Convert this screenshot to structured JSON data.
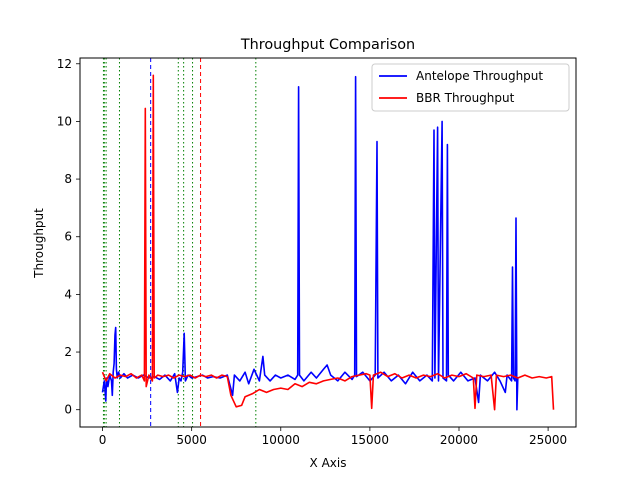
{
  "chart_data": {
    "type": "line",
    "title": "Throughput Comparison",
    "xlabel": "X Axis",
    "ylabel": "Throughput",
    "xlim": [
      -1265,
      26565
    ],
    "ylim": [
      -0.6,
      12.2
    ],
    "x_ticks": [
      0,
      5000,
      10000,
      15000,
      20000,
      25000
    ],
    "y_ticks": [
      0,
      2,
      4,
      6,
      8,
      10,
      12
    ],
    "grid": false,
    "legend_position": "upper right",
    "series": [
      {
        "name": "Antelope Throughput",
        "color": "#0000ff",
        "points": [
          [
            0,
            0.6
          ],
          [
            100,
            1.0
          ],
          [
            180,
            0.3
          ],
          [
            220,
            1.1
          ],
          [
            300,
            0.8
          ],
          [
            400,
            1.2
          ],
          [
            500,
            1.0
          ],
          [
            550,
            0.5
          ],
          [
            600,
            1.3
          ],
          [
            650,
            1.6
          ],
          [
            700,
            2.6
          ],
          [
            740,
            2.85
          ],
          [
            780,
            1.4
          ],
          [
            830,
            1.1
          ],
          [
            900,
            1.3
          ],
          [
            1000,
            1.1
          ],
          [
            1200,
            1.25
          ],
          [
            1400,
            1.1
          ],
          [
            1700,
            1.2
          ],
          [
            2000,
            1.1
          ],
          [
            2300,
            1.2
          ],
          [
            2600,
            1.1
          ],
          [
            2900,
            1.15
          ],
          [
            3200,
            1.05
          ],
          [
            3500,
            1.2
          ],
          [
            3800,
            1.0
          ],
          [
            4050,
            1.25
          ],
          [
            4200,
            0.6
          ],
          [
            4300,
            1.1
          ],
          [
            4400,
            1.0
          ],
          [
            4500,
            1.3
          ],
          [
            4580,
            2.65
          ],
          [
            4650,
            1.0
          ],
          [
            4800,
            1.2
          ],
          [
            5000,
            1.1
          ],
          [
            5300,
            1.15
          ],
          [
            5600,
            1.2
          ],
          [
            5900,
            1.1
          ],
          [
            6200,
            1.15
          ],
          [
            6600,
            1.1
          ],
          [
            7000,
            1.2
          ],
          [
            7300,
            0.5
          ],
          [
            7400,
            1.2
          ],
          [
            7700,
            1.0
          ],
          [
            8000,
            1.3
          ],
          [
            8200,
            0.9
          ],
          [
            8500,
            1.4
          ],
          [
            8800,
            1.0
          ],
          [
            9000,
            1.85
          ],
          [
            9100,
            1.2
          ],
          [
            9400,
            1.0
          ],
          [
            9700,
            1.2
          ],
          [
            10000,
            1.1
          ],
          [
            10400,
            1.2
          ],
          [
            10800,
            1.05
          ],
          [
            10950,
            1.2
          ],
          [
            11000,
            11.2
          ],
          [
            11050,
            1.2
          ],
          [
            11300,
            1.0
          ],
          [
            11700,
            1.3
          ],
          [
            12000,
            1.1
          ],
          [
            12400,
            1.4
          ],
          [
            12600,
            1.55
          ],
          [
            12800,
            1.2
          ],
          [
            13200,
            1.0
          ],
          [
            13600,
            1.3
          ],
          [
            14000,
            1.05
          ],
          [
            14150,
            1.2
          ],
          [
            14200,
            11.55
          ],
          [
            14250,
            1.15
          ],
          [
            14600,
            1.3
          ],
          [
            15000,
            1.0
          ],
          [
            15300,
            1.2
          ],
          [
            15400,
            9.3
          ],
          [
            15450,
            1.1
          ],
          [
            15800,
            1.3
          ],
          [
            16200,
            1.0
          ],
          [
            16600,
            1.2
          ],
          [
            17000,
            0.9
          ],
          [
            17400,
            1.3
          ],
          [
            17800,
            1.0
          ],
          [
            18200,
            1.2
          ],
          [
            18500,
            1.0
          ],
          [
            18600,
            9.7
          ],
          [
            18650,
            1.1
          ],
          [
            18800,
            9.8
          ],
          [
            18850,
            1.0
          ],
          [
            19050,
            10.0
          ],
          [
            19100,
            1.1
          ],
          [
            19300,
            1.0
          ],
          [
            19350,
            9.2
          ],
          [
            19400,
            1.2
          ],
          [
            19700,
            1.0
          ],
          [
            20100,
            1.3
          ],
          [
            20500,
            1.0
          ],
          [
            20900,
            1.1
          ],
          [
            21100,
            0.25
          ],
          [
            21200,
            1.2
          ],
          [
            21600,
            1.0
          ],
          [
            22000,
            1.3
          ],
          [
            22300,
            1.0
          ],
          [
            22600,
            0.6
          ],
          [
            22700,
            1.2
          ],
          [
            22950,
            1.0
          ],
          [
            23000,
            4.95
          ],
          [
            23050,
            1.1
          ],
          [
            23150,
            1.0
          ],
          [
            23200,
            6.65
          ],
          [
            23250,
            0.0
          ],
          [
            23300,
            1.1
          ]
        ]
      },
      {
        "name": "BBR Throughput",
        "color": "#ff0000",
        "points": [
          [
            0,
            1.3
          ],
          [
            200,
            1.0
          ],
          [
            400,
            1.25
          ],
          [
            700,
            1.1
          ],
          [
            1000,
            1.2
          ],
          [
            1300,
            1.15
          ],
          [
            1600,
            1.25
          ],
          [
            1900,
            1.1
          ],
          [
            2200,
            1.2
          ],
          [
            2350,
            1.0
          ],
          [
            2400,
            10.45
          ],
          [
            2450,
            0.8
          ],
          [
            2600,
            1.2
          ],
          [
            2800,
            1.0
          ],
          [
            2850,
            11.6
          ],
          [
            2900,
            1.1
          ],
          [
            3100,
            1.2
          ],
          [
            3400,
            1.15
          ],
          [
            3700,
            1.2
          ],
          [
            4000,
            1.1
          ],
          [
            4300,
            1.2
          ],
          [
            4600,
            1.15
          ],
          [
            4900,
            1.2
          ],
          [
            5200,
            1.1
          ],
          [
            5500,
            1.2
          ],
          [
            5800,
            1.15
          ],
          [
            6100,
            1.2
          ],
          [
            6400,
            1.1
          ],
          [
            6700,
            1.2
          ],
          [
            7000,
            1.15
          ],
          [
            7200,
            0.5
          ],
          [
            7500,
            0.1
          ],
          [
            7800,
            0.15
          ],
          [
            8000,
            0.45
          ],
          [
            8400,
            0.55
          ],
          [
            8800,
            0.7
          ],
          [
            9200,
            0.6
          ],
          [
            9600,
            0.7
          ],
          [
            10000,
            0.75
          ],
          [
            10400,
            0.7
          ],
          [
            10800,
            0.9
          ],
          [
            11200,
            0.8
          ],
          [
            11600,
            0.95
          ],
          [
            12000,
            0.9
          ],
          [
            12400,
            1.0
          ],
          [
            12800,
            1.05
          ],
          [
            13200,
            1.1
          ],
          [
            13600,
            1.0
          ],
          [
            14000,
            1.15
          ],
          [
            14400,
            1.2
          ],
          [
            14800,
            1.25
          ],
          [
            15000,
            1.2
          ],
          [
            15100,
            0.05
          ],
          [
            15200,
            1.2
          ],
          [
            15600,
            1.3
          ],
          [
            16000,
            1.15
          ],
          [
            16400,
            1.25
          ],
          [
            16800,
            1.1
          ],
          [
            17200,
            1.2
          ],
          [
            17600,
            1.1
          ],
          [
            18000,
            1.2
          ],
          [
            18400,
            1.15
          ],
          [
            18800,
            1.25
          ],
          [
            19200,
            1.1
          ],
          [
            19600,
            1.2
          ],
          [
            20000,
            1.15
          ],
          [
            20400,
            1.25
          ],
          [
            20800,
            1.1
          ],
          [
            20900,
            0.05
          ],
          [
            21000,
            1.2
          ],
          [
            21400,
            1.15
          ],
          [
            21800,
            1.2
          ],
          [
            22000,
            0.0
          ],
          [
            22100,
            1.2
          ],
          [
            22500,
            1.15
          ],
          [
            22900,
            1.2
          ],
          [
            23300,
            1.1
          ],
          [
            23700,
            1.2
          ],
          [
            24100,
            1.1
          ],
          [
            24500,
            1.15
          ],
          [
            24900,
            1.1
          ],
          [
            25200,
            1.15
          ],
          [
            25300,
            0.0
          ]
        ]
      }
    ],
    "vlines": [
      {
        "x": 50,
        "color": "#008000",
        "style": "dotted"
      },
      {
        "x": 100,
        "color": "#008000",
        "style": "dotted"
      },
      {
        "x": 200,
        "color": "#008000",
        "style": "dotted"
      },
      {
        "x": 950,
        "color": "#008000",
        "style": "dotted"
      },
      {
        "x": 2700,
        "color": "#0000ff",
        "style": "dashed"
      },
      {
        "x": 4250,
        "color": "#008000",
        "style": "dotted"
      },
      {
        "x": 4550,
        "color": "#008000",
        "style": "dotted"
      },
      {
        "x": 5050,
        "color": "#008000",
        "style": "dotted"
      },
      {
        "x": 5500,
        "color": "#ff0000",
        "style": "dashed"
      },
      {
        "x": 8600,
        "color": "#008000",
        "style": "dotted"
      }
    ]
  }
}
